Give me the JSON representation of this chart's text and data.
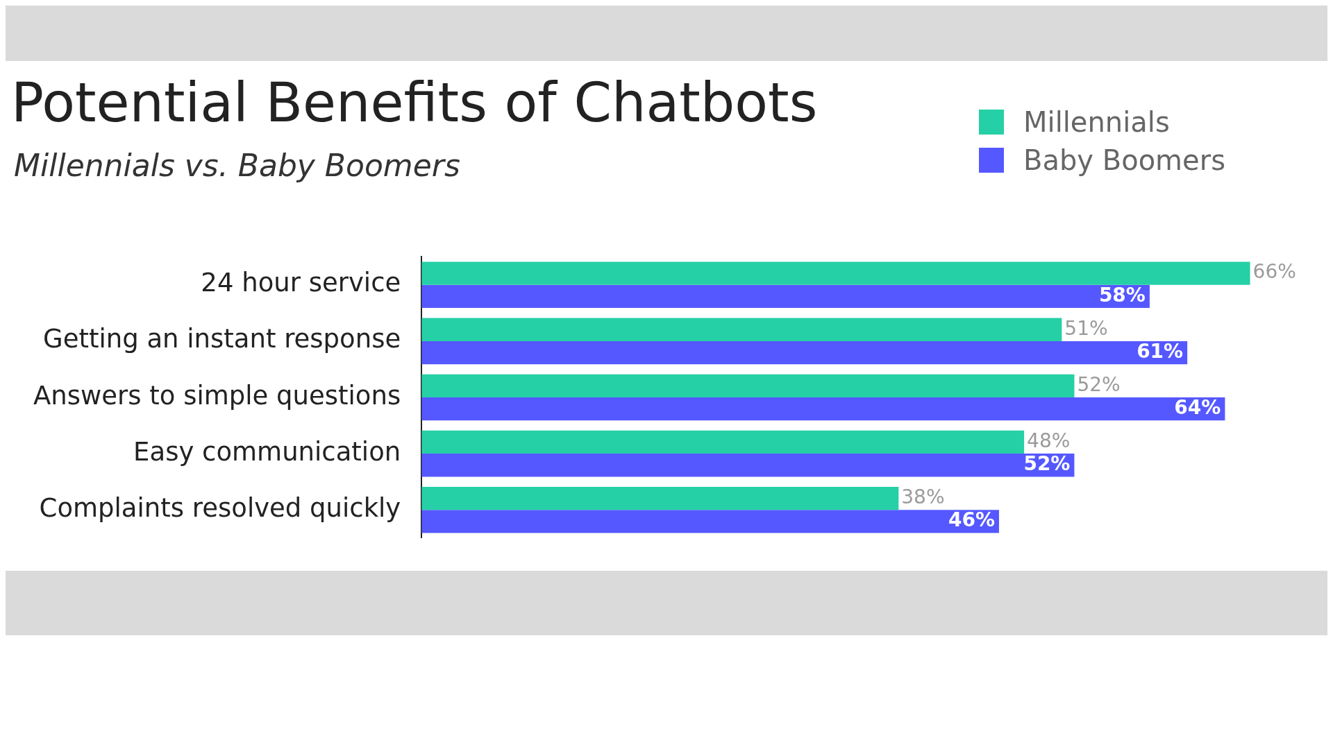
{
  "chart_data": {
    "type": "bar",
    "orientation": "horizontal",
    "title": "Potential Benefits of Chatbots",
    "subtitle": "Millennials vs. Baby Boomers",
    "categories": [
      "24 hour service",
      "Getting an instant response",
      "Answers to simple questions",
      "Easy communication",
      "Complaints resolved quickly"
    ],
    "series": [
      {
        "name": "Millennials",
        "color": "#26d0a6",
        "values": [
          66,
          51,
          52,
          48,
          38
        ],
        "value_labels": [
          "66%",
          "51%",
          "52%",
          "48%",
          "38%"
        ]
      },
      {
        "name": "Baby Boomers",
        "color": "#5558ff",
        "values": [
          58,
          61,
          64,
          52,
          46
        ],
        "value_labels": [
          "58%",
          "61%",
          "64%",
          "52%",
          "46%"
        ]
      }
    ],
    "legend": "top right"
  }
}
